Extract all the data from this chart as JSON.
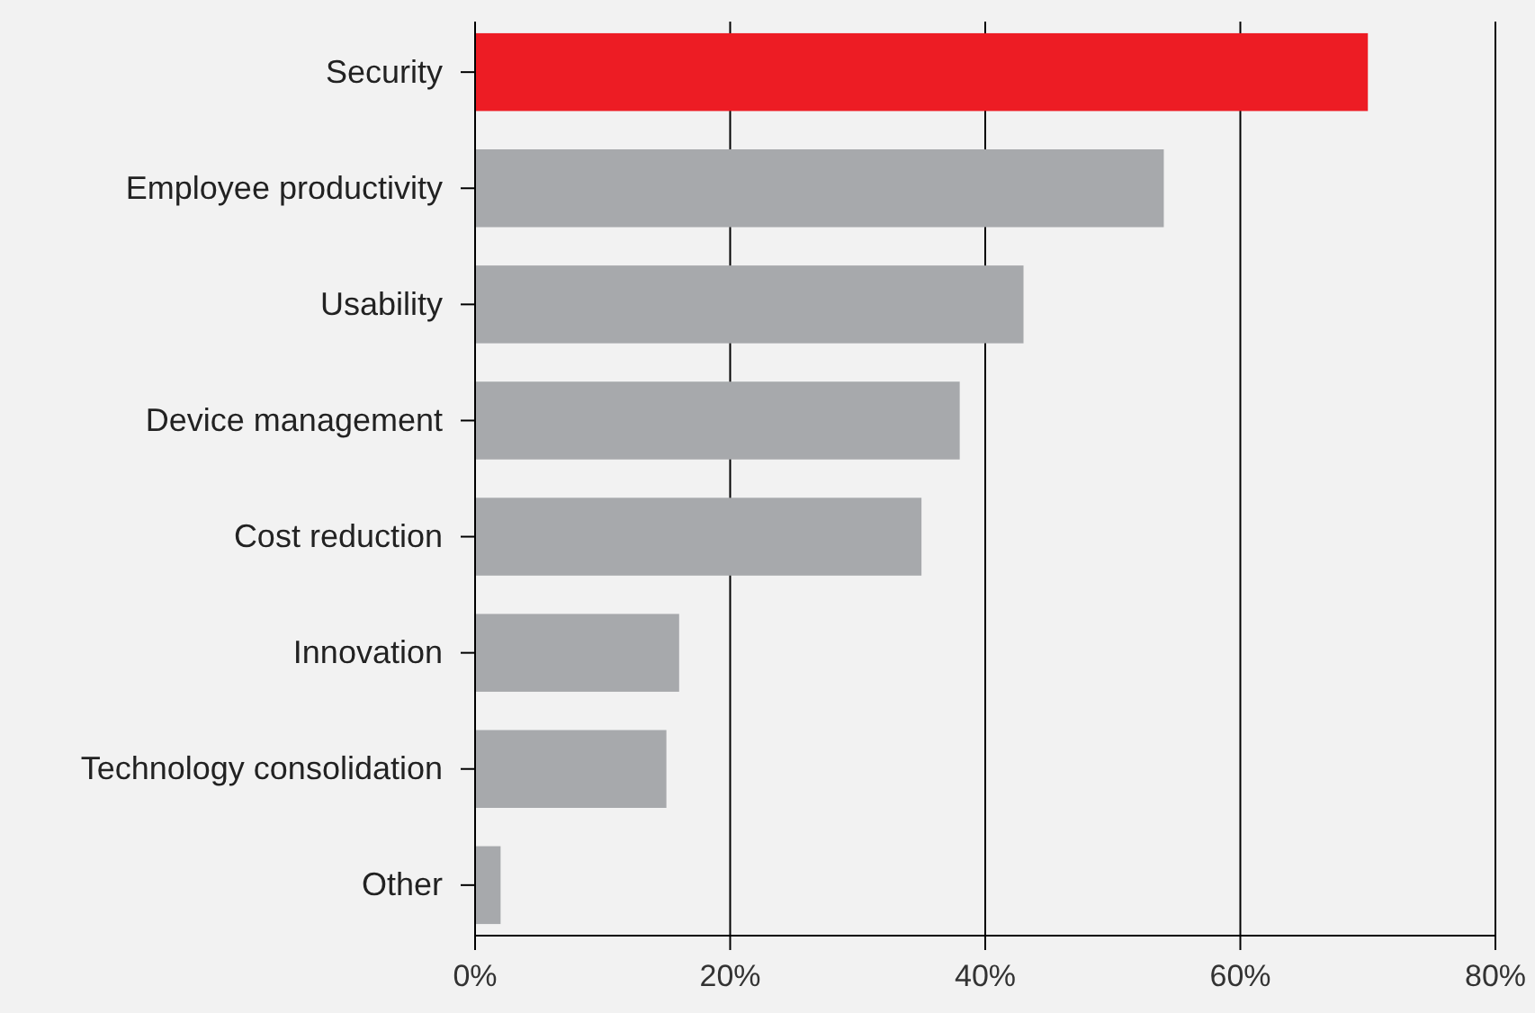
{
  "chart_data": {
    "type": "bar",
    "orientation": "horizontal",
    "categories": [
      "Security",
      "Employee productivity",
      "Usability",
      "Device management",
      "Cost reduction",
      "Innovation",
      "Technology consolidation",
      "Other"
    ],
    "values": [
      70,
      54,
      43,
      38,
      35,
      16,
      15,
      2
    ],
    "colors": [
      "#ed1c24",
      "#a7a9ac",
      "#a7a9ac",
      "#a7a9ac",
      "#a7a9ac",
      "#a7a9ac",
      "#a7a9ac",
      "#a7a9ac"
    ],
    "xlim": [
      0,
      80
    ],
    "xticks": [
      {
        "value": 0,
        "label": "0%"
      },
      {
        "value": 20,
        "label": "20%"
      },
      {
        "value": 40,
        "label": "40%"
      },
      {
        "value": 60,
        "label": "60%"
      },
      {
        "value": 80,
        "label": "80%"
      }
    ],
    "grid": "x"
  }
}
